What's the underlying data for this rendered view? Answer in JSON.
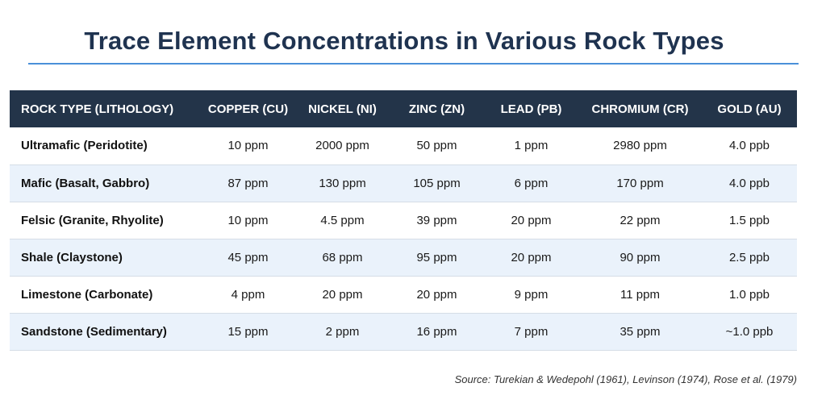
{
  "title": "Trace Element Concentrations in Various Rock Types",
  "table": {
    "headers": [
      "ROCK TYPE (LITHOLOGY)",
      "COPPER (CU)",
      "NICKEL (NI)",
      "ZINC (ZN)",
      "LEAD (PB)",
      "CHROMIUM (CR)",
      "GOLD (AU)"
    ],
    "rows": [
      [
        "Ultramafic (Peridotite)",
        "10 ppm",
        "2000 ppm",
        "50 ppm",
        "1 ppm",
        "2980 ppm",
        "4.0 ppb"
      ],
      [
        "Mafic (Basalt, Gabbro)",
        "87 ppm",
        "130 ppm",
        "105 ppm",
        "6 ppm",
        "170 ppm",
        "4.0 ppb"
      ],
      [
        "Felsic (Granite, Rhyolite)",
        "10 ppm",
        "4.5 ppm",
        "39 ppm",
        "20 ppm",
        "22 ppm",
        "1.5 ppb"
      ],
      [
        "Shale (Claystone)",
        "45 ppm",
        "68 ppm",
        "95 ppm",
        "20 ppm",
        "90 ppm",
        "2.5 ppb"
      ],
      [
        "Limestone (Carbonate)",
        "4 ppm",
        "20 ppm",
        "20 ppm",
        "9 ppm",
        "11 ppm",
        "1.0 ppb"
      ],
      [
        "Sandstone (Sedimentary)",
        "15 ppm",
        "2 ppm",
        "16 ppm",
        "7 ppm",
        "35 ppm",
        "~1.0 ppb"
      ]
    ]
  },
  "source": "Source: Turekian & Wedepohl (1961), Levinson (1974), Rose et al. (1979)",
  "colors": {
    "header_bg": "#233449",
    "title": "#1f3350",
    "rule": "#4a90d9",
    "alt_row": "#eaf2fb"
  }
}
